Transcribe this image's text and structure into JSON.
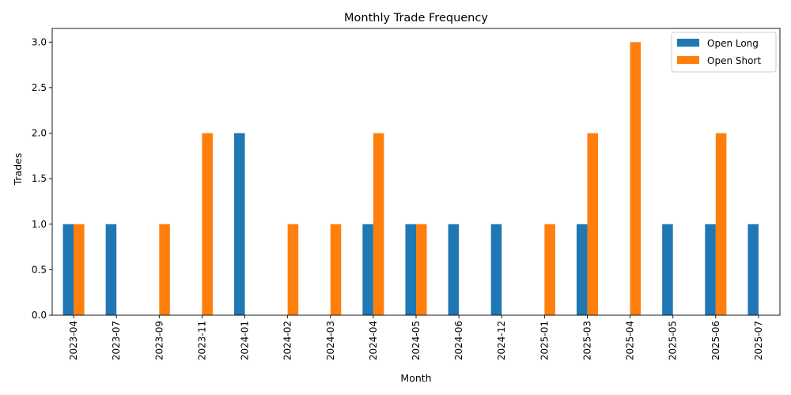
{
  "chart_data": {
    "type": "bar",
    "title": "Monthly Trade Frequency",
    "xlabel": "Month",
    "ylabel": "Trades",
    "categories": [
      "2023-04",
      "2023-07",
      "2023-09",
      "2023-11",
      "2024-01",
      "2024-02",
      "2024-03",
      "2024-04",
      "2024-05",
      "2024-06",
      "2024-12",
      "2025-01",
      "2025-03",
      "2025-04",
      "2025-05",
      "2025-06",
      "2025-07"
    ],
    "series": [
      {
        "name": "Open Long",
        "color": "#1f77b4",
        "values": [
          1,
          1,
          0,
          0,
          2,
          0,
          0,
          1,
          1,
          1,
          1,
          0,
          1,
          0,
          1,
          1,
          1
        ]
      },
      {
        "name": "Open Short",
        "color": "#ff7f0e",
        "values": [
          1,
          0,
          1,
          2,
          0,
          1,
          1,
          2,
          1,
          0,
          0,
          1,
          2,
          3,
          0,
          2,
          0
        ]
      }
    ],
    "ylim": [
      0,
      3.15
    ],
    "yticks": [
      "0.0",
      "0.5",
      "1.0",
      "1.5",
      "2.0",
      "2.5",
      "3.0"
    ],
    "legend_position": "top-right",
    "grid": false
  }
}
